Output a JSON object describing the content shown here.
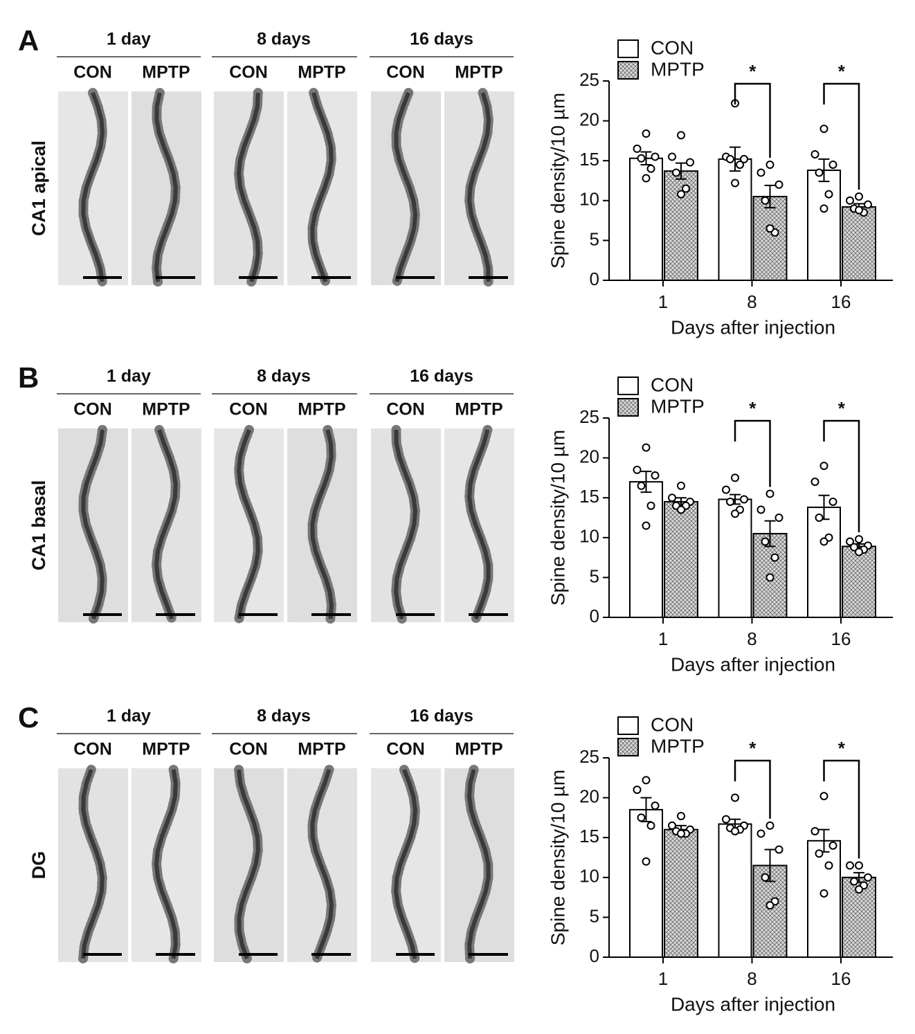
{
  "panels": [
    {
      "letter": "A",
      "region": "CA1 apical",
      "groups": [
        "1 day",
        "8 days",
        "16 days"
      ],
      "conditions": [
        "CON",
        "MPTP",
        "CON",
        "MPTP",
        "CON",
        "MPTP"
      ]
    },
    {
      "letter": "B",
      "region": "CA1 basal",
      "groups": [
        "1 day",
        "8 days",
        "16 days"
      ],
      "conditions": [
        "CON",
        "MPTP",
        "CON",
        "MPTP",
        "CON",
        "MPTP"
      ]
    },
    {
      "letter": "C",
      "region": "DG",
      "groups": [
        "1 day",
        "8 days",
        "16 days"
      ],
      "conditions": [
        "CON",
        "MPTP",
        "CON",
        "MPTP",
        "CON",
        "MPTP"
      ]
    }
  ],
  "chart_data": [
    {
      "type": "bar",
      "ylabel": "Spine density/10 µm",
      "xlabel": "Days after injection",
      "categories": [
        "1",
        "8",
        "16"
      ],
      "ylim": [
        0,
        25
      ],
      "yticks": [
        0,
        5,
        10,
        15,
        20,
        25
      ],
      "legend": "top-left",
      "significance": [
        null,
        "*",
        "*"
      ],
      "series": [
        {
          "name": "CON",
          "color": "#ffffff",
          "values": [
            15.3,
            15.2,
            13.8
          ],
          "errors": [
            0.8,
            1.5,
            1.4
          ],
          "points": [
            [
              18.4,
              16.5,
              15.5,
              15.3,
              14.0,
              12.8
            ],
            [
              22.2,
              15.5,
              15.2,
              15.2,
              14.5,
              12.2
            ],
            [
              19.0,
              15.8,
              14.5,
              13.5,
              10.8,
              9.0
            ]
          ]
        },
        {
          "name": "MPTP",
          "color": "#c8c8c8",
          "pattern": "crosshatch",
          "values": [
            13.7,
            10.5,
            9.2
          ],
          "errors": [
            1.0,
            1.4,
            0.4
          ],
          "points": [
            [
              18.2,
              15.5,
              14.8,
              13.5,
              11.5,
              10.8
            ],
            [
              14.5,
              13.5,
              12.0,
              10.0,
              6.0,
              6.5
            ],
            [
              10.5,
              10.0,
              9.5,
              9.0,
              8.5,
              8.8
            ]
          ]
        }
      ]
    },
    {
      "type": "bar",
      "ylabel": "Spine density/10 µm",
      "xlabel": "Days after injection",
      "categories": [
        "1",
        "8",
        "16"
      ],
      "ylim": [
        0,
        25
      ],
      "yticks": [
        0,
        5,
        10,
        15,
        20,
        25
      ],
      "legend": "top-left",
      "significance": [
        null,
        "*",
        "*"
      ],
      "series": [
        {
          "name": "CON",
          "color": "#ffffff",
          "values": [
            17.0,
            14.8,
            13.8
          ],
          "errors": [
            1.3,
            0.6,
            1.5
          ],
          "points": [
            [
              21.3,
              18.5,
              17.8,
              16.5,
              14.0,
              11.5
            ],
            [
              17.5,
              16.0,
              14.8,
              14.5,
              13.5,
              13.0
            ],
            [
              19.0,
              17.0,
              14.5,
              12.5,
              10.0,
              9.5
            ]
          ]
        },
        {
          "name": "MPTP",
          "color": "#c8c8c8",
          "pattern": "crosshatch",
          "values": [
            14.5,
            10.5,
            8.9
          ],
          "errors": [
            0.5,
            1.6,
            0.3
          ],
          "points": [
            [
              16.5,
              15.0,
              14.5,
              14.0,
              14.0,
              13.5
            ],
            [
              15.5,
              13.5,
              12.5,
              9.5,
              7.5,
              5.0
            ],
            [
              9.8,
              9.5,
              9.0,
              8.8,
              8.5,
              8.2
            ]
          ]
        }
      ]
    },
    {
      "type": "bar",
      "ylabel": "Spine density/10 µm",
      "xlabel": "Days after injection",
      "categories": [
        "1",
        "8",
        "16"
      ],
      "ylim": [
        0,
        25
      ],
      "yticks": [
        0,
        5,
        10,
        15,
        20,
        25
      ],
      "legend": "top-left",
      "significance": [
        null,
        "*",
        "*"
      ],
      "series": [
        {
          "name": "CON",
          "color": "#ffffff",
          "values": [
            18.5,
            16.7,
            14.6
          ],
          "errors": [
            1.5,
            0.6,
            1.4
          ],
          "points": [
            [
              22.2,
              21.0,
              19.0,
              17.5,
              16.5,
              12.0
            ],
            [
              20.0,
              17.3,
              16.5,
              16.2,
              16.0,
              15.8
            ],
            [
              20.2,
              15.8,
              14.0,
              13.0,
              11.5,
              8.0
            ]
          ]
        },
        {
          "name": "MPTP",
          "color": "#c8c8c8",
          "pattern": "crosshatch",
          "values": [
            16.0,
            11.5,
            10.0
          ],
          "errors": [
            0.5,
            2.0,
            0.6
          ],
          "points": [
            [
              17.7,
              16.5,
              16.0,
              15.8,
              15.5,
              15.5
            ],
            [
              16.5,
              15.5,
              13.5,
              10.0,
              7.0,
              6.5
            ],
            [
              11.5,
              11.5,
              10.0,
              9.5,
              9.0,
              8.5
            ]
          ]
        }
      ]
    }
  ]
}
